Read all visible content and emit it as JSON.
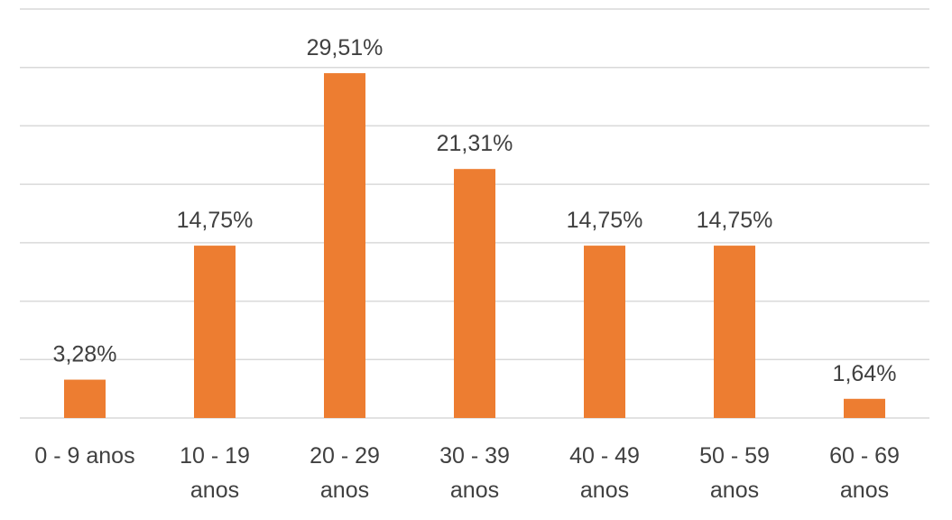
{
  "chart_data": {
    "type": "bar",
    "categories": [
      [
        "0 - 9 anos"
      ],
      [
        "10 - 19",
        "anos"
      ],
      [
        "20 - 29",
        "anos"
      ],
      [
        "30 - 39",
        "anos"
      ],
      [
        "40 - 49",
        "anos"
      ],
      [
        "50 - 59",
        "anos"
      ],
      [
        "60 - 69",
        "anos"
      ]
    ],
    "values": [
      3.28,
      14.75,
      29.51,
      21.31,
      14.75,
      14.75,
      1.64
    ],
    "data_labels": [
      "3,28%",
      "14,75%",
      "29,51%",
      "21,31%",
      "14,75%",
      "14,75%",
      "1,64%"
    ],
    "title": "",
    "xlabel": "",
    "ylabel": "",
    "ylim": [
      0,
      35
    ],
    "y_axis_labels_shown": false,
    "grid": true,
    "legend": "none",
    "bar_color": "#ed7d31",
    "gridline_color": "#d9d9d9",
    "text_color": "#404040"
  }
}
